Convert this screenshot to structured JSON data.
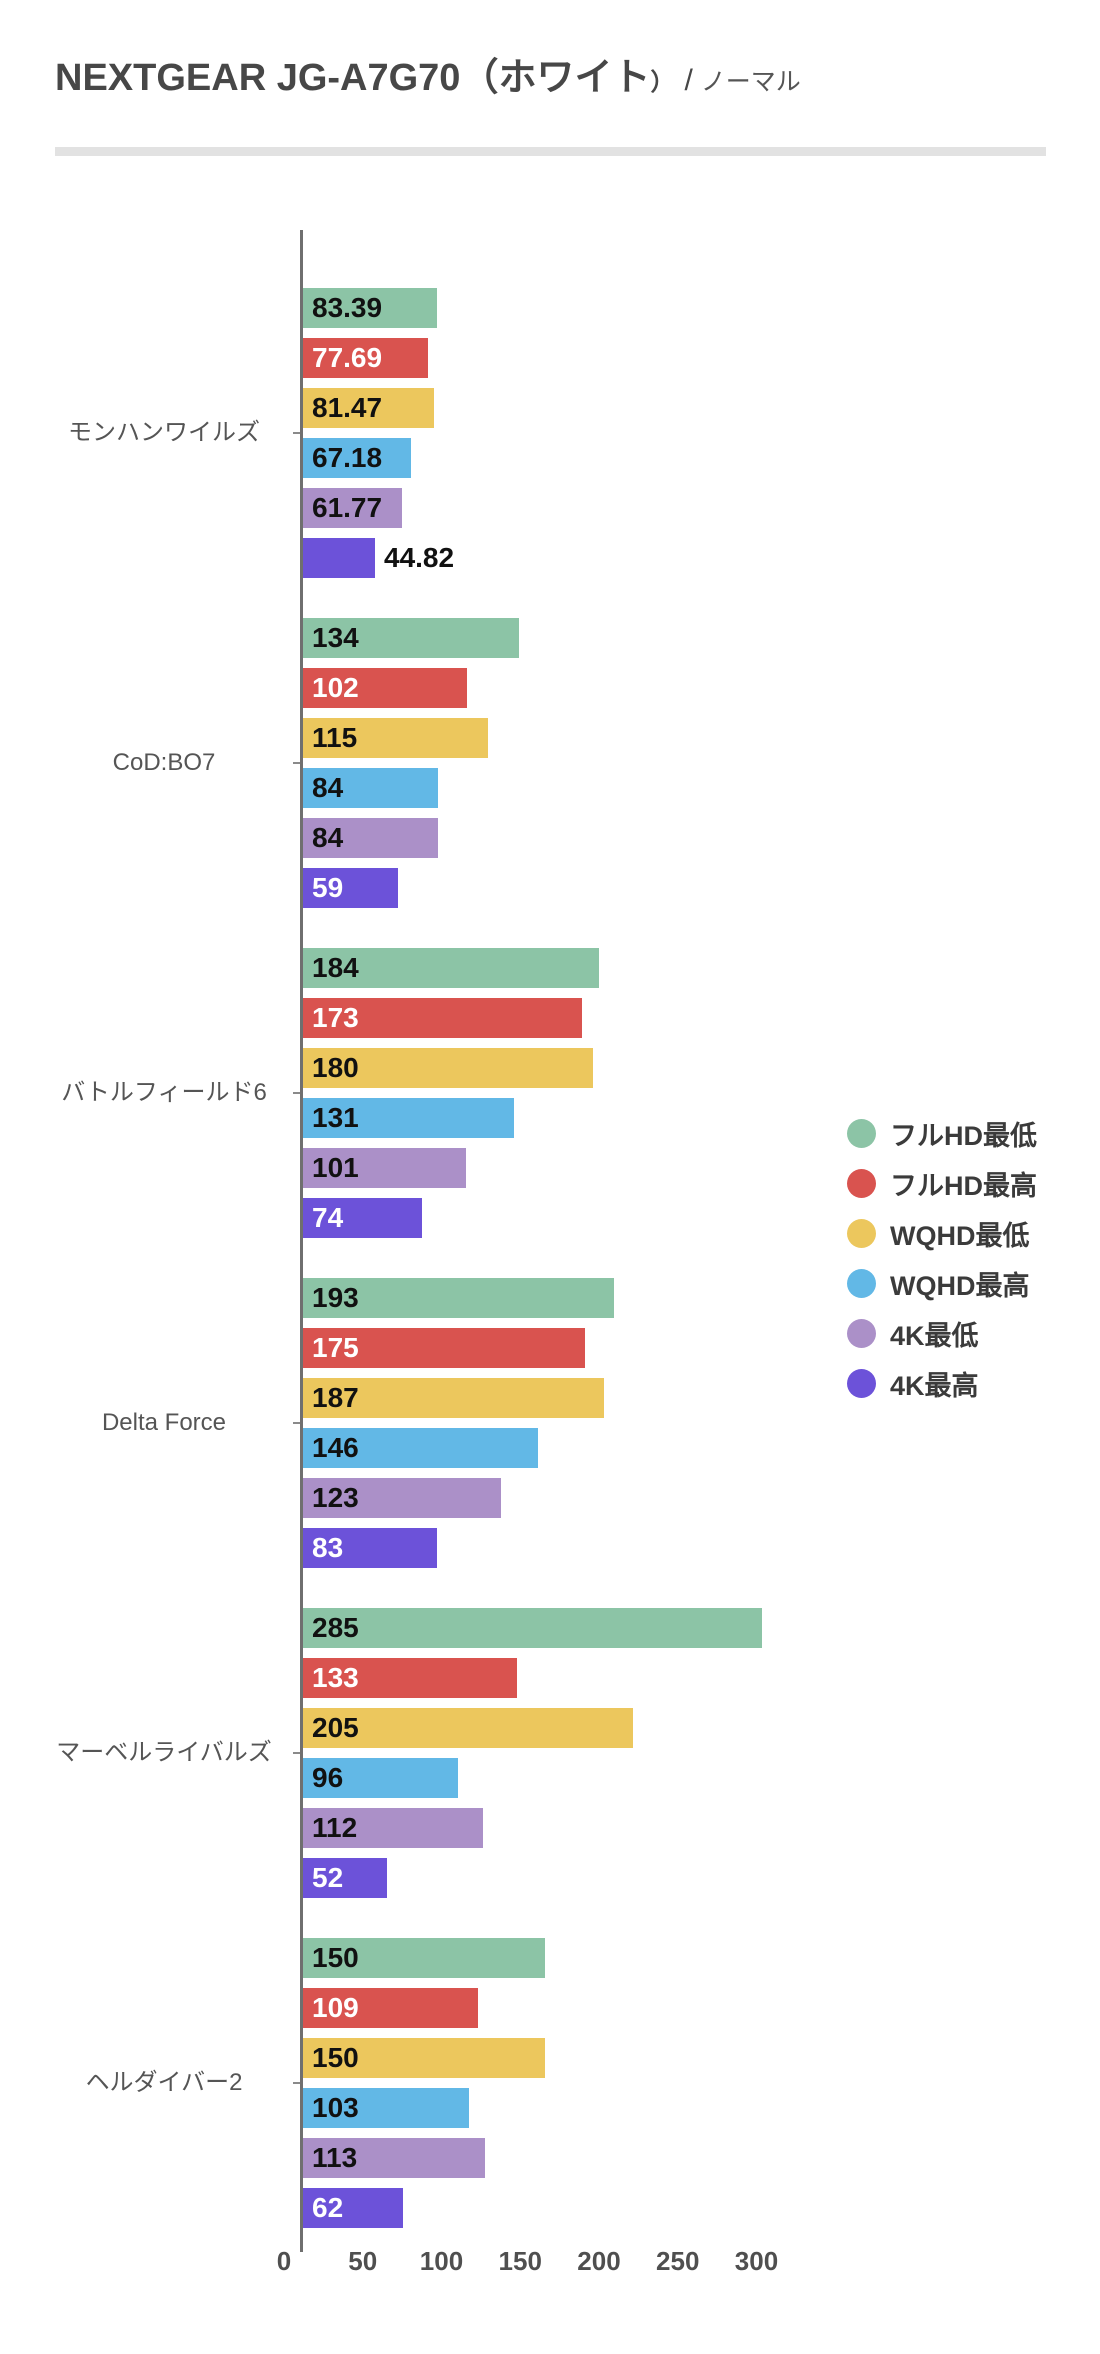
{
  "header": {
    "title_main": "NEXTGEAR JG-A7G70（ホワイト",
    "title_paren": "）",
    "title_slash": "/",
    "title_sub": "ノーマル"
  },
  "chart_data": {
    "type": "bar",
    "orientation": "horizontal",
    "title": "NEXTGEAR JG-A7G70（ホワイト）/ ノーマル",
    "categories": [
      "モンハンワイルズ",
      "CoD:BO7",
      "バトルフィールド6",
      "Delta Force",
      "マーベルライバルズ",
      "ヘルダイバー2"
    ],
    "series": [
      {
        "name": "フルHD最低",
        "color": "#8cc4a6",
        "label_color": "#111111",
        "values": [
          83.39,
          134,
          184,
          193,
          285,
          150
        ]
      },
      {
        "name": "フルHD最高",
        "color": "#d9534f",
        "label_color": "#ffffff",
        "values": [
          77.69,
          102,
          173,
          175,
          133,
          109
        ]
      },
      {
        "name": "WQHD最低",
        "color": "#ecc75d",
        "label_color": "#111111",
        "values": [
          81.47,
          115,
          180,
          187,
          205,
          150
        ]
      },
      {
        "name": "WQHD最高",
        "color": "#62b8e6",
        "label_color": "#111111",
        "values": [
          67.18,
          84,
          131,
          146,
          96,
          103
        ]
      },
      {
        "name": "4K最低",
        "color": "#ab90c8",
        "label_color": "#111111",
        "values": [
          61.77,
          84,
          101,
          123,
          112,
          113
        ]
      },
      {
        "name": "4K最高",
        "color": "#6c52d9",
        "label_color": "#ffffff",
        "values": [
          44.82,
          59,
          74,
          83,
          52,
          62
        ]
      }
    ],
    "xticks": [
      0,
      50,
      100,
      150,
      200,
      250,
      300
    ],
    "xlim": [
      0,
      300
    ],
    "xlabel": "",
    "ylabel": "",
    "grid": false,
    "legend_position": "right"
  }
}
